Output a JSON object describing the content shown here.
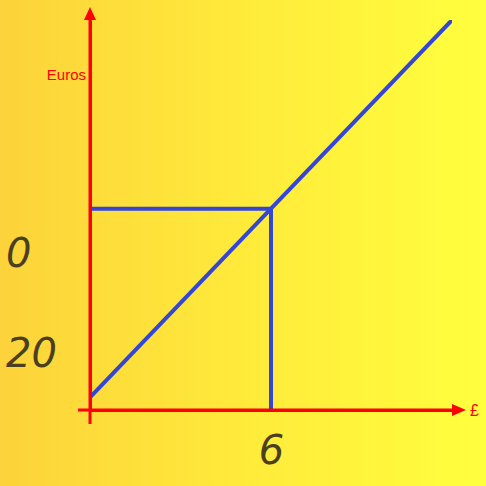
{
  "chart_data": {
    "type": "line",
    "x": [
      0,
      6,
      12
    ],
    "values": [
      20,
      50,
      80
    ],
    "color": "#3346d6",
    "xlim": [
      0,
      12
    ],
    "ylim": [
      18,
      80
    ],
    "xticks": [
      6
    ],
    "yticks": [],
    "tick_labels": "x",
    "x_label": "£",
    "y_label": "Euros",
    "annotations": [
      {
        "text": "0",
        "y": 43
      },
      {
        "text": "20",
        "y": 27
      }
    ]
  }
}
